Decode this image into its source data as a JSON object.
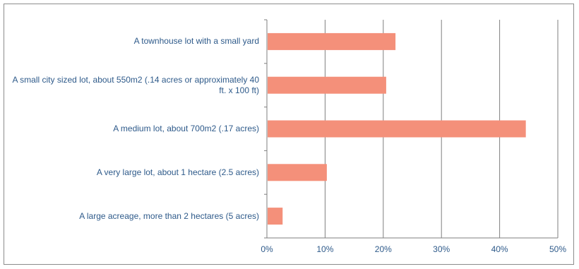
{
  "chart_data": {
    "type": "bar",
    "orientation": "horizontal",
    "categories": [
      "A townhouse lot with a small yard",
      "A small city sized lot, about 550m2 (.14 acres or approximately 40 ft. x 100 ft)",
      "A medium lot, about 700m2 (.17 acres)",
      "A very large lot, about 1 hectare (2.5 acres)",
      "A large acreage, more than 2 hectares (5 acres)"
    ],
    "values": [
      22.1,
      20.5,
      44.5,
      10.3,
      2.7
    ],
    "xlim": [
      0,
      50
    ],
    "xticks": [
      "0%",
      "10%",
      "20%",
      "30%",
      "40%",
      "50%"
    ],
    "grid": "vertical",
    "bar_color": "#f4907a",
    "grid_color": "#7f7f7f",
    "label_color": "#2e5a8a"
  }
}
